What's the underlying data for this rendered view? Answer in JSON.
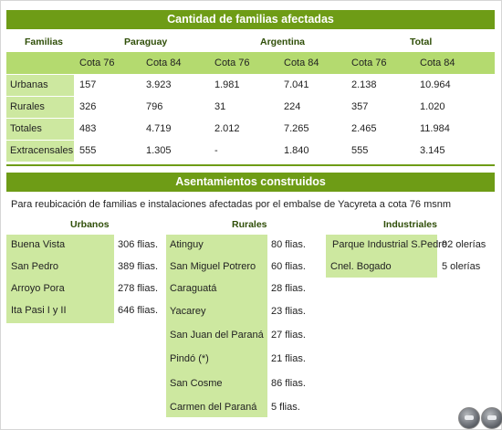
{
  "families": {
    "title": "Cantidad de familias afectadas",
    "group_headers": [
      "Familias",
      "Paraguay",
      "Argentina",
      "Total"
    ],
    "subheaders": [
      "Cota 76",
      "Cota 84",
      "Cota 76",
      "Cota 84",
      "Cota 76",
      "Cota 84"
    ],
    "rows": [
      {
        "label": "Urbanas",
        "values": [
          "157",
          "3.923",
          "1.981",
          "7.041",
          "2.138",
          "10.964"
        ]
      },
      {
        "label": "Rurales",
        "values": [
          "326",
          "796",
          "31",
          "224",
          "357",
          "1.020"
        ]
      },
      {
        "label": "Totales",
        "values": [
          "483",
          "4.719",
          "2.012",
          "7.265",
          "2.465",
          "11.984"
        ]
      },
      {
        "label": "Extracensales",
        "values": [
          "555",
          "1.305",
          "-",
          "1.840",
          "555",
          "3.145"
        ]
      }
    ]
  },
  "settlements": {
    "title": "Asentamientos construidos",
    "description": "Para reubicación de familias e instalaciones afectadas por el embalse de Yacyreta a cota 76 msnm",
    "columns": [
      {
        "header": "Urbanos",
        "items": [
          {
            "name": "Buena Vista",
            "count": "306 flias."
          },
          {
            "name": "San Pedro",
            "count": "389 flias."
          },
          {
            "name": "Arroyo Pora",
            "count": "278 flias."
          },
          {
            "name": "Ita Pasi I y II",
            "count": "646 flias."
          }
        ]
      },
      {
        "header": "Rurales",
        "items": [
          {
            "name": "Atinguy",
            "count": "80 flias."
          },
          {
            "name": "San Miguel Potrero",
            "count": "60 flias."
          },
          {
            "name": "Caraguatá",
            "count": "28 flias."
          },
          {
            "name": "Yacarey",
            "count": "23 flias."
          },
          {
            "name": "San Juan del Paraná",
            "count": "27 flias."
          },
          {
            "name": "Pindó (*)",
            "count": "21 flias."
          },
          {
            "name": "San Cosme",
            "count": "86 flias."
          },
          {
            "name": "Carmen del Paraná",
            "count": "5 flias."
          }
        ]
      },
      {
        "header": "Industriales",
        "items": [
          {
            "name": "Parque Industrial S.Pedro",
            "count": "92 olerías"
          },
          {
            "name": "Cnel. Bogado",
            "count": "5 olerías"
          }
        ]
      }
    ]
  },
  "controls": {
    "icons": [
      "prev-icon",
      "next-icon"
    ]
  },
  "colors": {
    "accent": "#6e9c16",
    "band": "#b4da6f",
    "cell": "#cde8a0"
  }
}
